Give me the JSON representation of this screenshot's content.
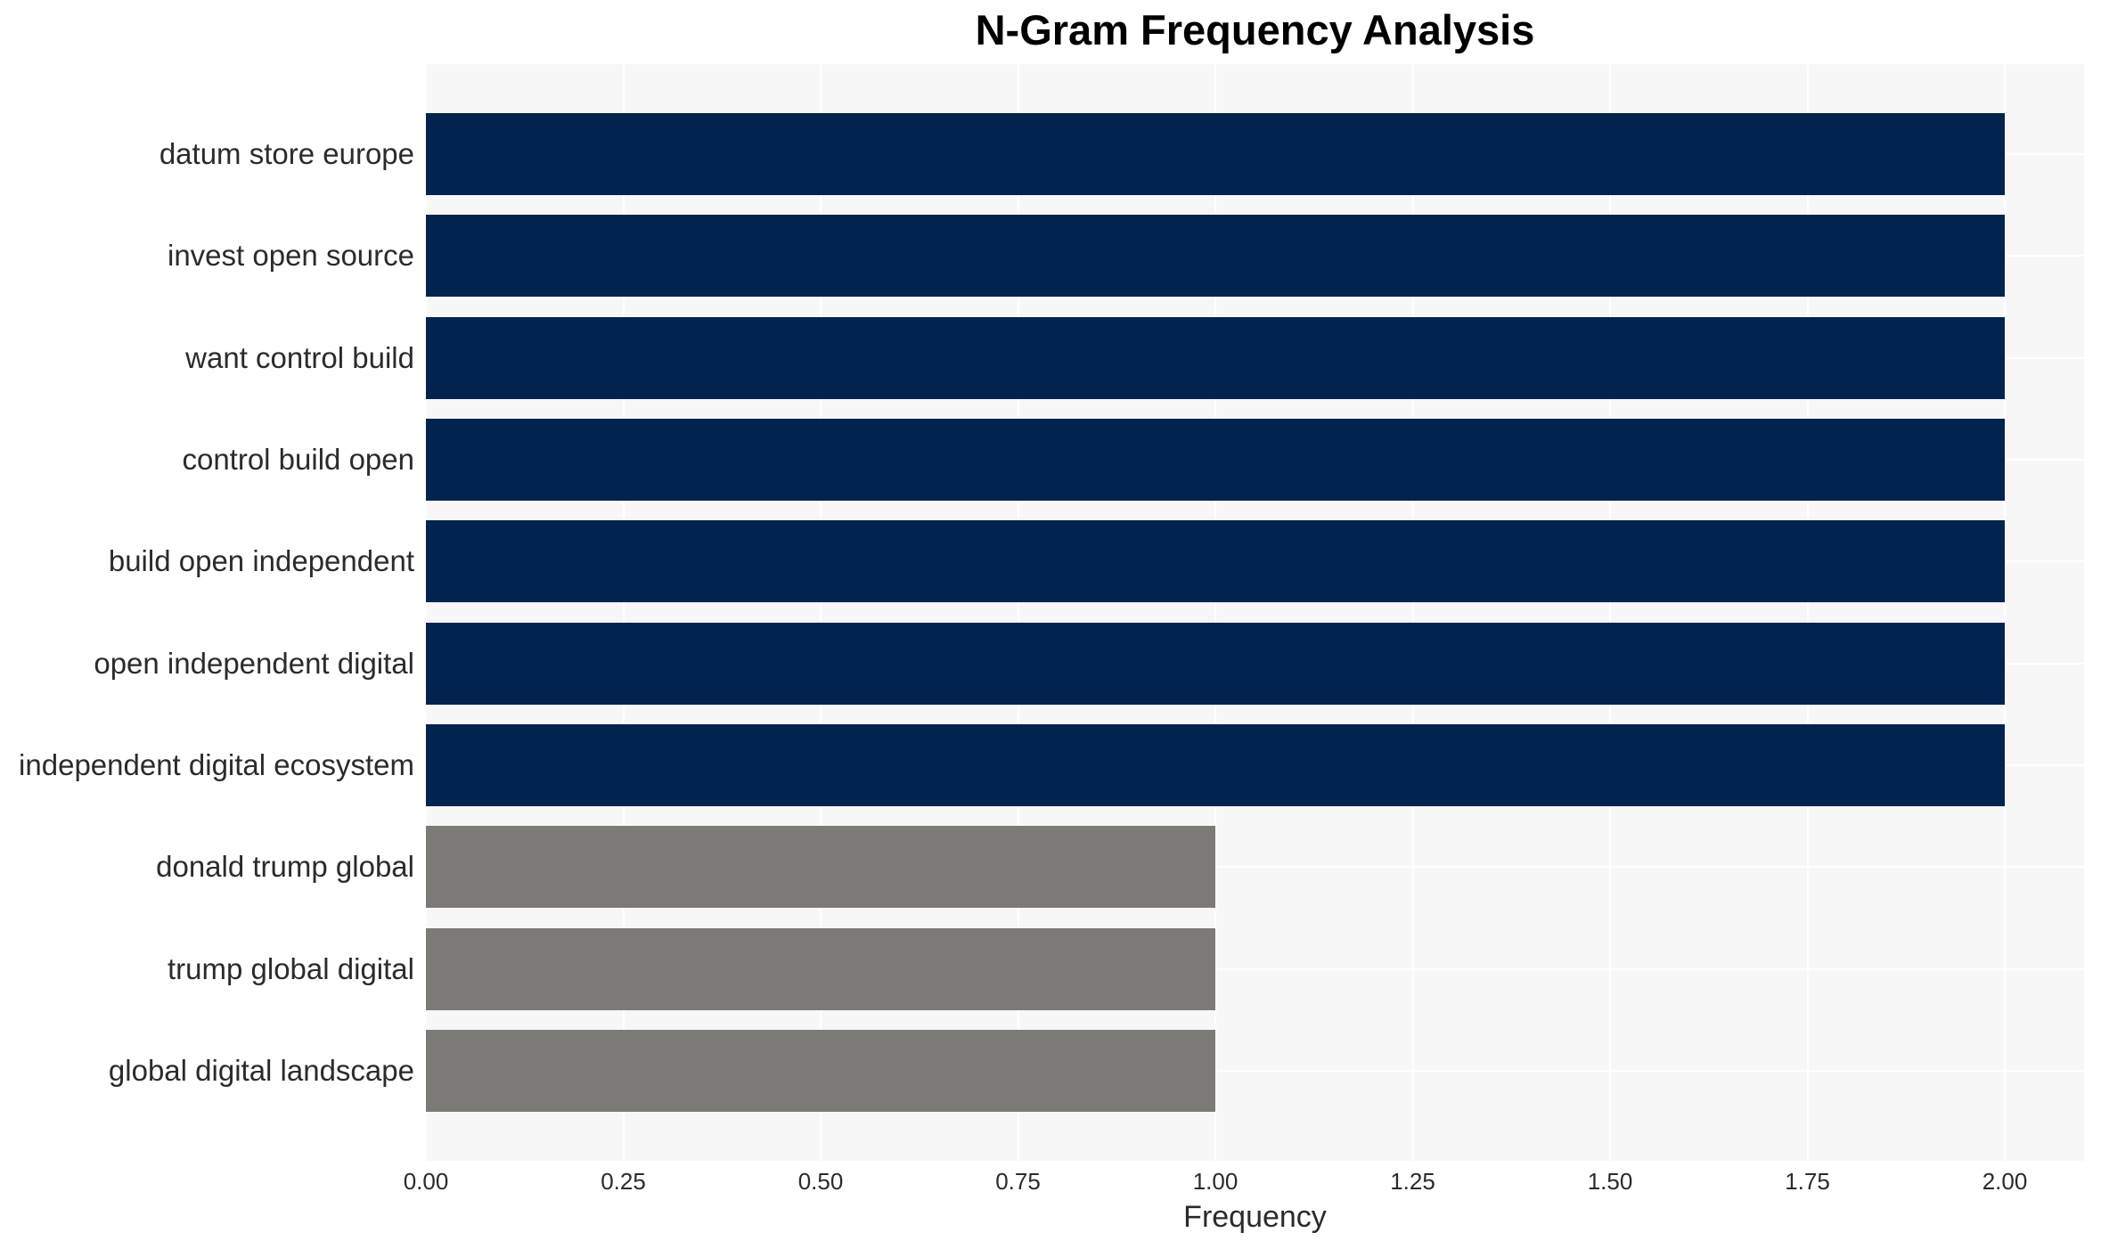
{
  "chart_data": {
    "type": "bar",
    "orientation": "horizontal",
    "title": "N-Gram Frequency Analysis",
    "xlabel": "Frequency",
    "ylabel": "",
    "categories": [
      "datum store europe",
      "invest open source",
      "want control build",
      "control build open",
      "build open independent",
      "open independent digital",
      "independent digital ecosystem",
      "donald trump global",
      "trump global digital",
      "global digital landscape"
    ],
    "values": [
      2,
      2,
      2,
      2,
      2,
      2,
      2,
      1,
      1,
      1
    ],
    "bar_colors": [
      "#02234e",
      "#02234e",
      "#02234e",
      "#02234e",
      "#02234e",
      "#02234e",
      "#02234e",
      "#7b7a77",
      "#7b7a77",
      "#7b7a77"
    ],
    "x_ticks": [
      "0.00",
      "0.25",
      "0.50",
      "0.75",
      "1.00",
      "1.25",
      "1.50",
      "1.75",
      "2.00"
    ],
    "x_tick_values": [
      0,
      0.25,
      0.5,
      0.75,
      1.0,
      1.25,
      1.5,
      1.75,
      2.0
    ],
    "xlim": [
      0,
      2.1
    ],
    "grid": true,
    "legend": false,
    "colors_meaning": {
      "high_frequency": "#02234e",
      "low_frequency": "#7b7a77"
    },
    "plot_background": "#f7f7f8",
    "gridline_color": "#ffffff",
    "text_color": "#2b2b2b",
    "title_color": "#000000"
  }
}
